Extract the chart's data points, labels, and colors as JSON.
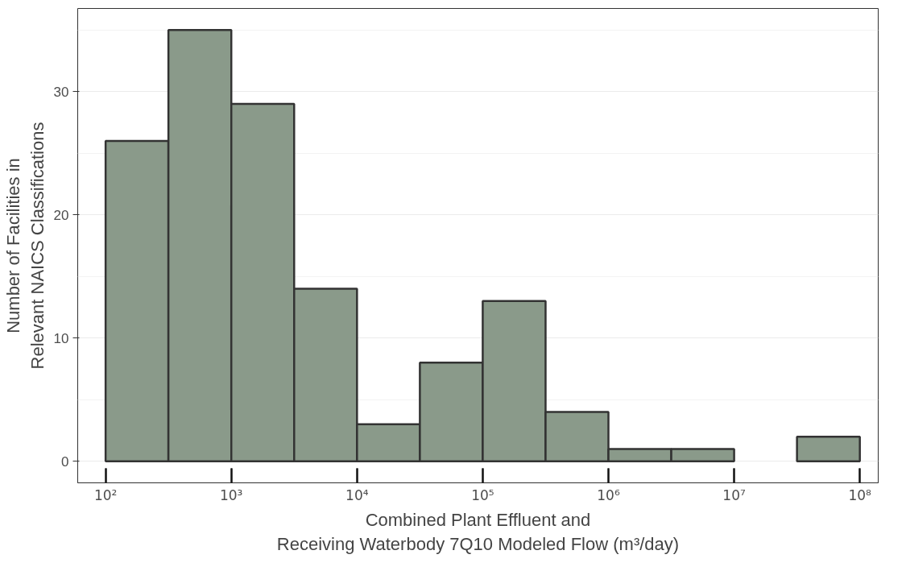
{
  "chart_data": {
    "type": "histogram",
    "xlabel": "Combined Plant Effluent and\nReceiving Waterbody 7Q10 Modeled Flow (m³/day)",
    "ylabel": "Number of Facilities in\nRelevant NAICS Classifications",
    "bins": [
      100,
      316,
      1000,
      3162,
      10000,
      31623,
      100000,
      316228,
      1000000,
      3162278,
      10000000,
      31622777,
      100000000
    ],
    "values": [
      26,
      35,
      29,
      14,
      3,
      8,
      13,
      4,
      1,
      1,
      0,
      2
    ],
    "color": "#8a9a8a",
    "log": "x",
    "grid": "y",
    "xlim": [
      60,
      140000000
    ],
    "xticks": [
      {
        "value": 100,
        "label": "10²"
      },
      {
        "value": 1000,
        "label": "10³"
      },
      {
        "value": 10000,
        "label": "10⁴"
      },
      {
        "value": 100000,
        "label": "10⁵"
      },
      {
        "value": 1000000,
        "label": "10⁶"
      },
      {
        "value": 10000000,
        "label": "10⁷"
      },
      {
        "value": 100000000,
        "label": "10⁸"
      }
    ],
    "ylim": [
      -1.75,
      36.75
    ],
    "yticks": [
      0,
      10,
      20,
      30
    ]
  }
}
